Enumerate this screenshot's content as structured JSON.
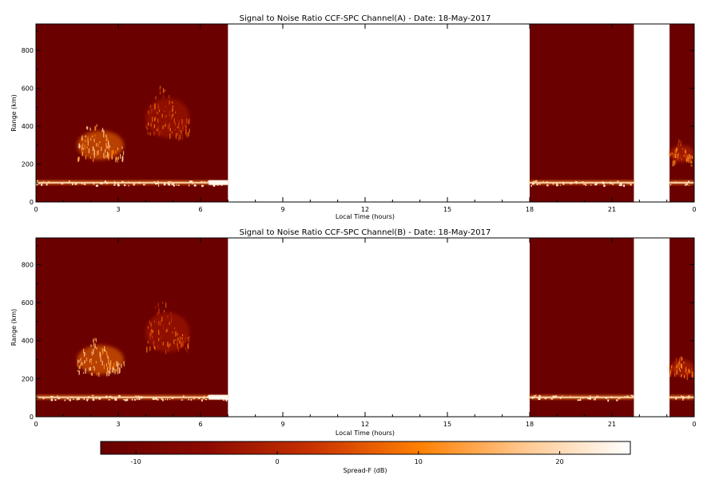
{
  "chart_data": [
    {
      "type": "heatmap",
      "title": "Signal to Noise Ratio CCF-SPC Channel(A) - Date: 18-May-2017",
      "xlabel": "Local Time (hours)",
      "ylabel": "Range (km)",
      "xlim": [
        0,
        24
      ],
      "ylim": [
        0,
        940
      ],
      "x_ticks": [
        "0",
        "3",
        "6",
        "9",
        "12",
        "15",
        "18",
        "21",
        "0"
      ],
      "x_tick_values": [
        0,
        3,
        6,
        9,
        12,
        15,
        18,
        21,
        24
      ],
      "y_ticks": [
        "0",
        "200",
        "400",
        "600",
        "800"
      ],
      "y_tick_values": [
        0,
        200,
        400,
        600,
        800
      ],
      "data_intervals_hours": [
        [
          0,
          7.0
        ],
        [
          18.0,
          21.8
        ],
        [
          23.1,
          24
        ]
      ],
      "features": [
        {
          "name": "E-layer echo band",
          "range_km": [
            90,
            115
          ],
          "hours": [
            [
              0,
              7.0
            ],
            [
              18.0,
              21.8
            ],
            [
              23.1,
              24
            ]
          ],
          "snr_db": 20
        },
        {
          "name": "Spread-F plume",
          "hours": [
            1.5,
            3.2
          ],
          "range_km": [
            230,
            430
          ],
          "snr_db": 15
        },
        {
          "name": "Secondary plume",
          "hours": [
            4.0,
            5.6
          ],
          "range_km": [
            350,
            620
          ],
          "snr_db": 5
        },
        {
          "name": "Late night trace",
          "hours": [
            23.1,
            24
          ],
          "range_km": [
            215,
            330
          ],
          "snr_db": 8
        }
      ]
    },
    {
      "type": "heatmap",
      "title": "Signal to Noise Ratio CCF-SPC Channel(B) - Date: 18-May-2017",
      "xlabel": "Local Time (hours)",
      "ylabel": "Range (km)",
      "xlim": [
        0,
        24
      ],
      "ylim": [
        0,
        940
      ],
      "x_ticks": [
        "0",
        "3",
        "6",
        "9",
        "12",
        "15",
        "18",
        "21",
        "0"
      ],
      "x_tick_values": [
        0,
        3,
        6,
        9,
        12,
        15,
        18,
        21,
        24
      ],
      "y_ticks": [
        "0",
        "200",
        "400",
        "600",
        "800"
      ],
      "y_tick_values": [
        0,
        200,
        400,
        600,
        800
      ],
      "data_intervals_hours": [
        [
          0,
          7.0
        ],
        [
          18.0,
          21.8
        ],
        [
          23.1,
          24
        ]
      ],
      "features": [
        {
          "name": "E-layer echo band",
          "range_km": [
            90,
            115
          ],
          "hours": [
            [
              0,
              7.0
            ],
            [
              18.0,
              21.8
            ],
            [
              23.1,
              24
            ]
          ],
          "snr_db": 20
        },
        {
          "name": "Spread-F plume",
          "hours": [
            1.5,
            3.2
          ],
          "range_km": [
            230,
            430
          ],
          "snr_db": 15
        },
        {
          "name": "Secondary plume",
          "hours": [
            4.0,
            5.6
          ],
          "range_km": [
            350,
            620
          ],
          "snr_db": 5
        },
        {
          "name": "Late night trace",
          "hours": [
            23.1,
            24
          ],
          "range_km": [
            215,
            330
          ],
          "snr_db": 8
        }
      ]
    }
  ],
  "colorbar": {
    "label": "Spread-F (dB)",
    "range": [
      -12.5,
      25
    ],
    "ticks": [
      "-10",
      "0",
      "10",
      "20"
    ],
    "tick_values": [
      -10,
      0,
      10,
      20
    ],
    "colors": [
      "#660000",
      "#8b0a00",
      "#c83200",
      "#ff7f00",
      "#ffc890",
      "#ffffff"
    ]
  },
  "background_color": "#6b0000"
}
